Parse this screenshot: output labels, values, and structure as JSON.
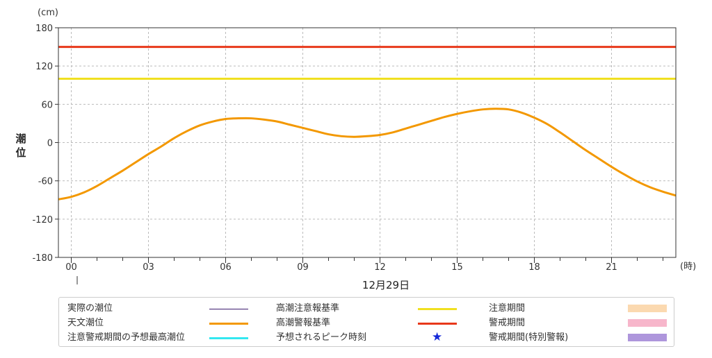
{
  "chart_data": {
    "type": "line",
    "title": "",
    "y_unit": "(cm)",
    "x_unit": "(時)",
    "ylabel": "潮位",
    "date_label": "12月29日",
    "ylim": [
      -180,
      180
    ],
    "y_ticks": [
      180,
      120,
      60,
      0,
      -60,
      -120,
      -180
    ],
    "x_ticks": [
      "00",
      "03",
      "06",
      "09",
      "12",
      "15",
      "18",
      "21"
    ],
    "xlim": [
      -0.5,
      23.5
    ],
    "grid": true,
    "series": [
      {
        "name": "天文潮位",
        "color": "#F39800",
        "x": [
          -0.5,
          0,
          0.5,
          1,
          1.5,
          2,
          2.5,
          3,
          3.5,
          4,
          4.5,
          5,
          5.5,
          6,
          6.5,
          7,
          7.5,
          8,
          8.5,
          9,
          9.5,
          10,
          10.5,
          11,
          11.5,
          12,
          12.5,
          13,
          13.5,
          14,
          14.5,
          15,
          15.5,
          16,
          16.5,
          17,
          17.5,
          18,
          18.5,
          19,
          19.5,
          20,
          20.5,
          21,
          21.5,
          22,
          22.5,
          23,
          23.5
        ],
        "values": [
          -89,
          -85,
          -78,
          -68,
          -56,
          -44,
          -31,
          -18,
          -6,
          7,
          18,
          27,
          33,
          37,
          38,
          38,
          36,
          33,
          28,
          23,
          18,
          13,
          10,
          9,
          10,
          12,
          16,
          22,
          28,
          34,
          40,
          45,
          49,
          52,
          53,
          52,
          47,
          39,
          29,
          16,
          2,
          -12,
          -25,
          -38,
          -50,
          -61,
          -70,
          -77,
          -83
        ]
      },
      {
        "name": "高潮注意報基準",
        "color": "#F0E020",
        "x": [
          -0.5,
          23.5
        ],
        "values": [
          100,
          100
        ]
      },
      {
        "name": "高潮警報基準",
        "color": "#E8381A",
        "x": [
          -0.5,
          23.5
        ],
        "values": [
          150,
          150
        ]
      }
    ],
    "legend": {
      "placement": "bottom",
      "items": [
        {
          "label": "実際の潮位",
          "symbol": "line",
          "color": "#3A1A6E",
          "thin": true
        },
        {
          "label": "天文潮位",
          "symbol": "line",
          "color": "#F39800"
        },
        {
          "label": "注意警戒期間の予想最高潮位",
          "symbol": "line",
          "color": "#33E8F0"
        },
        {
          "label": "高潮注意報基準",
          "symbol": "line",
          "color": "#F0E020"
        },
        {
          "label": "高潮警報基準",
          "symbol": "line",
          "color": "#E8381A"
        },
        {
          "label": "予想されるピーク時刻",
          "symbol": "star",
          "color": "#1428D8",
          "glyph": "★"
        },
        {
          "label": "注意期間",
          "symbol": "box",
          "color": "#FBD9B0"
        },
        {
          "label": "警戒期間",
          "symbol": "box",
          "color": "#F7B6CB"
        },
        {
          "label": "警戒期間(特別警報)",
          "symbol": "box",
          "color": "#AE96DC"
        }
      ]
    }
  }
}
